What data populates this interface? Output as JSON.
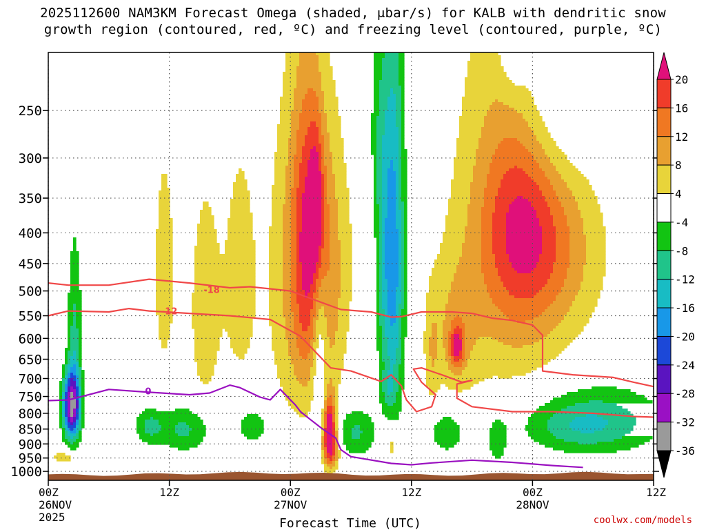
{
  "chart_data": {
    "type": "heatmap",
    "title_line1": "2025112600 NAM3KM Forecast Omega (shaded, μbar/s) for KALB with dendritic snow",
    "title_line2": "growth region (contoured, red, ºC) and freezing level (contoured, purple, ºC)",
    "xlabel": "Forecast Time (UTC)",
    "credit": "coolwx.com/models",
    "x_range": [
      0,
      60
    ],
    "x_ticks": [
      {
        "h": 0,
        "line1": "00Z",
        "line2": "26NOV",
        "line3": "2025"
      },
      {
        "h": 12,
        "line1": "12Z",
        "line2": "",
        "line3": ""
      },
      {
        "h": 24,
        "line1": "00Z",
        "line2": "27NOV",
        "line3": ""
      },
      {
        "h": 36,
        "line1": "12Z",
        "line2": "",
        "line3": ""
      },
      {
        "h": 48,
        "line1": "00Z",
        "line2": "28NOV",
        "line3": ""
      },
      {
        "h": 60,
        "line1": "12Z",
        "line2": "",
        "line3": ""
      }
    ],
    "y_range_hpa": [
      1035,
      200
    ],
    "y_ticks": [
      250,
      300,
      350,
      400,
      450,
      500,
      550,
      600,
      650,
      700,
      750,
      800,
      850,
      900,
      950,
      1000
    ],
    "colorbar": {
      "labels": [
        "20",
        "16",
        "12",
        "8",
        "4",
        "-4",
        "-8",
        "-12",
        "-16",
        "-20",
        "-24",
        "-28",
        "-32",
        "-36"
      ],
      "levels": [
        {
          "lo": 20,
          "hi": 24,
          "color": "#e0107a"
        },
        {
          "lo": 16,
          "hi": 20,
          "color": "#f03c2a"
        },
        {
          "lo": 12,
          "hi": 16,
          "color": "#f07822"
        },
        {
          "lo": 8,
          "hi": 12,
          "color": "#e8a030"
        },
        {
          "lo": 4,
          "hi": 8,
          "color": "#e8d43a"
        },
        {
          "lo": -4,
          "hi": 4,
          "color": "#ffffff"
        },
        {
          "lo": -8,
          "hi": -4,
          "color": "#12c412"
        },
        {
          "lo": -12,
          "hi": -8,
          "color": "#20c48a"
        },
        {
          "lo": -16,
          "hi": -12,
          "color": "#18bcc4"
        },
        {
          "lo": -20,
          "hi": -16,
          "color": "#1898e8"
        },
        {
          "lo": -24,
          "hi": -20,
          "color": "#1c48d8"
        },
        {
          "lo": -28,
          "hi": -24,
          "color": "#5a14c0"
        },
        {
          "lo": -32,
          "hi": -28,
          "color": "#9a10c4"
        },
        {
          "lo": -36,
          "hi": -32,
          "color": "#9a9a9a"
        }
      ],
      "top_color": "#e0107a",
      "bottom_color": "#000000"
    },
    "omega_features": [
      {
        "t": 2.3,
        "p": 778,
        "st": 0.6,
        "sp": 70,
        "amp": -32
      },
      {
        "t": 2.6,
        "p": 600,
        "st": 0.5,
        "sp": 150,
        "amp": -9
      },
      {
        "t": 1.7,
        "p": 948,
        "st": 1.0,
        "sp": 18,
        "amp": 7
      },
      {
        "t": 11.5,
        "p": 470,
        "st": 0.9,
        "sp": 170,
        "amp": 6
      },
      {
        "t": 15.5,
        "p": 540,
        "st": 1.1,
        "sp": 170,
        "amp": 7
      },
      {
        "t": 19.0,
        "p": 480,
        "st": 1.3,
        "sp": 180,
        "amp": 6
      },
      {
        "t": 13.5,
        "p": 850,
        "st": 2.0,
        "sp": 55,
        "amp": -9
      },
      {
        "t": 10.0,
        "p": 840,
        "st": 1.0,
        "sp": 40,
        "amp": -8
      },
      {
        "t": 20.2,
        "p": 840,
        "st": 1.3,
        "sp": 45,
        "amp": -7
      },
      {
        "t": 24.5,
        "p": 500,
        "st": 1.9,
        "sp": 210,
        "amp": 9
      },
      {
        "t": 25.6,
        "p": 450,
        "st": 0.9,
        "sp": 180,
        "amp": 10
      },
      {
        "t": 26.3,
        "p": 350,
        "st": 1.8,
        "sp": 110,
        "amp": 6
      },
      {
        "t": 28.0,
        "p": 520,
        "st": 1.2,
        "sp": 170,
        "amp": 8
      },
      {
        "t": 26.6,
        "p": 360,
        "st": 0.5,
        "sp": 75,
        "amp": 11
      },
      {
        "t": 26.9,
        "p": 640,
        "st": 0.5,
        "sp": 150,
        "amp": -8
      },
      {
        "t": 27.9,
        "p": 840,
        "st": 0.45,
        "sp": 70,
        "amp": 22
      },
      {
        "t": 28.0,
        "p": 925,
        "st": 0.6,
        "sp": 50,
        "amp": 13
      },
      {
        "t": 30.5,
        "p": 860,
        "st": 1.4,
        "sp": 60,
        "amp": -9
      },
      {
        "t": 31.7,
        "p": 420,
        "st": 1.3,
        "sp": 200,
        "amp": 4
      },
      {
        "t": 33.3,
        "p": 450,
        "st": 0.8,
        "sp": 180,
        "amp": -12
      },
      {
        "t": 32.5,
        "p": 270,
        "st": 0.9,
        "sp": 80,
        "amp": -5
      },
      {
        "t": 34.4,
        "p": 445,
        "st": 0.7,
        "sp": 230,
        "amp": -14
      },
      {
        "t": 33.7,
        "p": 730,
        "st": 0.5,
        "sp": 40,
        "amp": -6
      },
      {
        "t": 34.1,
        "p": 905,
        "st": 0.4,
        "sp": 40,
        "amp": 7
      },
      {
        "t": 38.0,
        "p": 640,
        "st": 0.5,
        "sp": 100,
        "amp": 5
      },
      {
        "t": 40.2,
        "p": 590,
        "st": 1.7,
        "sp": 110,
        "amp": 7
      },
      {
        "t": 40.5,
        "p": 620,
        "st": 0.5,
        "sp": 35,
        "amp": 15
      },
      {
        "t": 39.5,
        "p": 860,
        "st": 1.2,
        "sp": 50,
        "amp": -8
      },
      {
        "t": 44.5,
        "p": 885,
        "st": 0.7,
        "sp": 60,
        "amp": -7
      },
      {
        "t": 46.0,
        "p": 410,
        "st": 4.0,
        "sp": 220,
        "amp": 10
      },
      {
        "t": 48.0,
        "p": 400,
        "st": 3.3,
        "sp": 120,
        "amp": 8
      },
      {
        "t": 46.5,
        "p": 385,
        "st": 2.6,
        "sp": 100,
        "amp": 5
      },
      {
        "t": 52.5,
        "p": 430,
        "st": 3.0,
        "sp": 110,
        "amp": 4
      },
      {
        "t": 54.0,
        "p": 820,
        "st": 5.0,
        "sp": 75,
        "amp": -10
      },
      {
        "t": 52.5,
        "p": 850,
        "st": 3.5,
        "sp": 50,
        "amp": -4
      },
      {
        "t": 50.0,
        "p": 235,
        "st": 3.0,
        "sp": 70,
        "amp": -9
      },
      {
        "t": 46.0,
        "p": 190,
        "st": 1.0,
        "sp": 30,
        "amp": -6
      }
    ],
    "dendritic_contours": [
      {
        "label": "-18",
        "label_at": [
          16.2,
          497
        ],
        "points": [
          [
            0,
            485
          ],
          [
            2,
            489
          ],
          [
            6,
            489
          ],
          [
            10,
            478
          ],
          [
            14,
            485
          ],
          [
            18,
            494
          ],
          [
            20,
            492
          ],
          [
            24,
            500
          ],
          [
            27,
            522
          ],
          [
            29,
            537
          ],
          [
            32,
            542
          ],
          [
            34,
            553
          ],
          [
            35,
            552
          ],
          [
            37,
            542
          ],
          [
            40,
            542
          ],
          [
            42,
            545
          ],
          [
            44,
            555
          ],
          [
            46,
            560
          ],
          [
            48,
            570
          ],
          [
            49,
            593
          ],
          [
            49,
            680
          ],
          [
            52,
            690
          ],
          [
            56,
            697
          ],
          [
            58,
            710
          ],
          [
            60,
            722
          ]
        ]
      },
      {
        "label": "-12",
        "label_at": [
          12.0,
          540
        ],
        "points": [
          [
            0,
            550
          ],
          [
            2,
            540
          ],
          [
            6,
            542
          ],
          [
            8,
            535
          ],
          [
            10,
            540
          ],
          [
            14,
            545
          ],
          [
            18,
            550
          ],
          [
            22,
            558
          ],
          [
            25,
            595
          ],
          [
            28,
            672
          ],
          [
            30,
            680
          ],
          [
            33,
            708
          ],
          [
            34,
            690
          ],
          [
            35,
            720
          ],
          [
            35.5,
            760
          ],
          [
            36.5,
            795
          ],
          [
            38,
            780
          ],
          [
            38.4,
            745
          ],
          [
            37,
            710
          ],
          [
            36.2,
            675
          ],
          [
            37,
            672
          ],
          [
            39,
            690
          ],
          [
            41,
            710
          ],
          [
            42,
            705
          ],
          [
            40.5,
            715
          ],
          [
            40.5,
            755
          ],
          [
            42,
            780
          ],
          [
            46,
            795
          ],
          [
            50,
            795
          ],
          [
            54,
            800
          ],
          [
            58,
            810
          ],
          [
            60,
            812
          ]
        ]
      }
    ],
    "freezing_contour": {
      "label": "0",
      "label_at": [
        9.9,
        734
      ],
      "points": [
        [
          0,
          762
        ],
        [
          2,
          760
        ],
        [
          4,
          745
        ],
        [
          6,
          730
        ],
        [
          10,
          738
        ],
        [
          14,
          745
        ],
        [
          16,
          740
        ],
        [
          18,
          718
        ],
        [
          19,
          725
        ],
        [
          21,
          752
        ],
        [
          22,
          760
        ],
        [
          23,
          730
        ],
        [
          24.5,
          775
        ],
        [
          25,
          795
        ],
        [
          26,
          820
        ],
        [
          27,
          845
        ],
        [
          28.5,
          880
        ],
        [
          29,
          920
        ],
        [
          30,
          945
        ],
        [
          34,
          970
        ],
        [
          36,
          975
        ],
        [
          38,
          968
        ],
        [
          42,
          958
        ],
        [
          46,
          966
        ],
        [
          50,
          978
        ],
        [
          53,
          985
        ]
      ]
    },
    "terrain_top_hpa": 1010
  }
}
